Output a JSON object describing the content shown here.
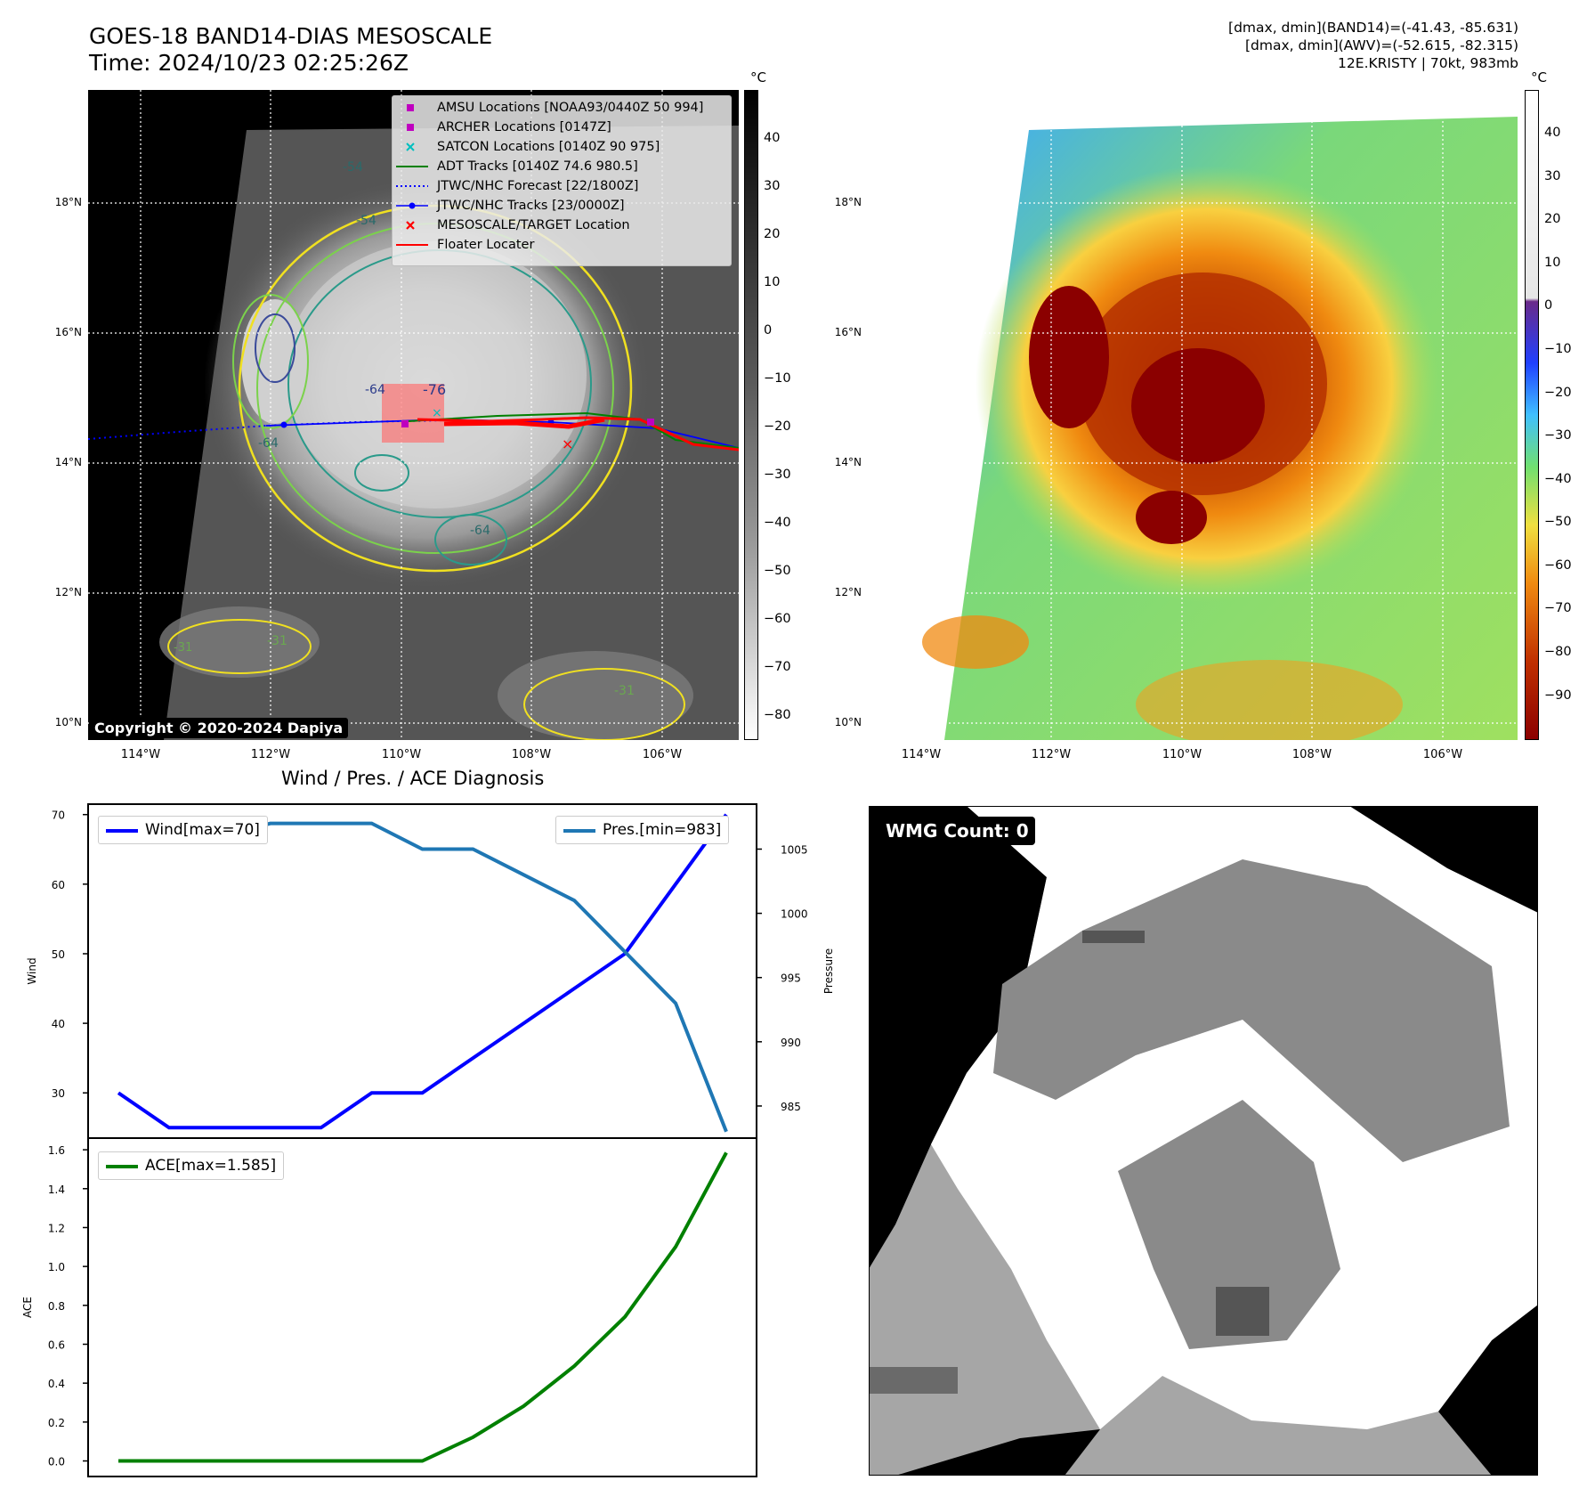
{
  "header": {
    "title_line1": "GOES-18 BAND14-DIAS MESOSCALE",
    "title_line2": "Time: 2024/10/23 02:25:26Z",
    "info_line1": "[dmax, dmin](BAND14)=(-41.43, -85.631)",
    "info_line2": "[dmax, dmin](AWV)=(-52.615, -82.315)",
    "info_line3": "12E.KRISTY | 70kt, 983mb"
  },
  "map_axes": {
    "lat_labels": [
      "18°N",
      "16°N",
      "14°N",
      "12°N",
      "10°N"
    ],
    "lon_labels": [
      "114°W",
      "112°W",
      "110°W",
      "108°W",
      "106°W"
    ]
  },
  "ir_colorbar": {
    "unit": "°C",
    "ticks": [
      "40",
      "30",
      "20",
      "10",
      "0",
      "−10",
      "−20",
      "−30",
      "−40",
      "−50",
      "−60",
      "−70",
      "−80"
    ]
  },
  "awv_colorbar": {
    "unit": "°C",
    "ticks": [
      "40",
      "30",
      "20",
      "10",
      "0",
      "−10",
      "−20",
      "−30",
      "−40",
      "−50",
      "−60",
      "−70",
      "−80",
      "−90"
    ]
  },
  "contour_labels": [
    "-54",
    "-64",
    "-76",
    "-64",
    "-64",
    "-31",
    "-31",
    "-31",
    "-54"
  ],
  "legend": {
    "items": [
      {
        "label": "AMSU Locations [NOAA93/0440Z 50 994]",
        "color": "#bf00bf",
        "marker": "square"
      },
      {
        "label": "ARCHER Locations [0147Z]",
        "color": "#bf00bf",
        "marker": "square"
      },
      {
        "label": "SATCON Locations [0140Z 90 975]",
        "color": "#00bfbf",
        "marker": "x"
      },
      {
        "label": "ADT Tracks [0140Z 74.6 980.5]",
        "color": "#008000",
        "marker": "line"
      },
      {
        "label": "JTWC/NHC Forecast [22/1800Z]",
        "color": "#0000ff",
        "marker": "dotted"
      },
      {
        "label": "JTWC/NHC Tracks [23/0000Z]",
        "color": "#0000ff",
        "marker": "line-dot"
      },
      {
        "label": "MESOSCALE/TARGET Location",
        "color": "#ff0000",
        "marker": "x"
      },
      {
        "label": "Floater Locater",
        "color": "#ff0000",
        "marker": "line"
      }
    ]
  },
  "copyright": "Copyright © 2020-2024 Dapiya",
  "wmg_label": "WMG Count: 0",
  "chart_data": [
    {
      "type": "line",
      "title": "Wind / Pres. / ACE Diagnosis",
      "x": [
        0,
        1,
        2,
        3,
        4,
        5,
        6,
        7,
        8,
        9,
        10,
        11,
        12
      ],
      "series": [
        {
          "name": "Wind[max=70]",
          "axis": "left",
          "color": "#0000ff",
          "values": [
            30,
            25,
            25,
            25,
            25,
            30,
            30,
            35,
            40,
            45,
            50,
            60,
            70
          ]
        },
        {
          "name": "Pres.[min=983]",
          "axis": "right",
          "color": "#1f77b4",
          "values": [
            1006,
            1006,
            1006,
            1007,
            1007,
            1007,
            1005,
            1005,
            1003,
            1001,
            997,
            993,
            983
          ]
        }
      ],
      "ylabel_left": "Wind",
      "ylabel_right": "Pressure",
      "ylim_left": [
        23.5,
        71.5
      ],
      "ylim_right": [
        982.5,
        1008.5
      ],
      "yticks_left": [
        30,
        40,
        50,
        60,
        70
      ],
      "yticks_right": [
        985,
        990,
        995,
        1000,
        1005
      ],
      "legend_left": "Wind[max=70]",
      "legend_right": "Pres.[min=983]"
    },
    {
      "type": "line",
      "x": [
        0,
        1,
        2,
        3,
        4,
        5,
        6,
        7,
        8,
        9,
        10,
        11,
        12
      ],
      "series": [
        {
          "name": "ACE[max=1.585]",
          "color": "#008000",
          "values": [
            0,
            0,
            0,
            0,
            0,
            0,
            0,
            0.122,
            0.282,
            0.488,
            0.741,
            1.101,
            1.585
          ]
        }
      ],
      "ylabel": "ACE",
      "ylim": [
        -0.08,
        1.66
      ],
      "yticks": [
        "0.0",
        "0.2",
        "0.4",
        "0.6",
        "0.8",
        "1.0",
        "1.2",
        "1.4",
        "1.6"
      ],
      "legend": "ACE[max=1.585]"
    }
  ]
}
